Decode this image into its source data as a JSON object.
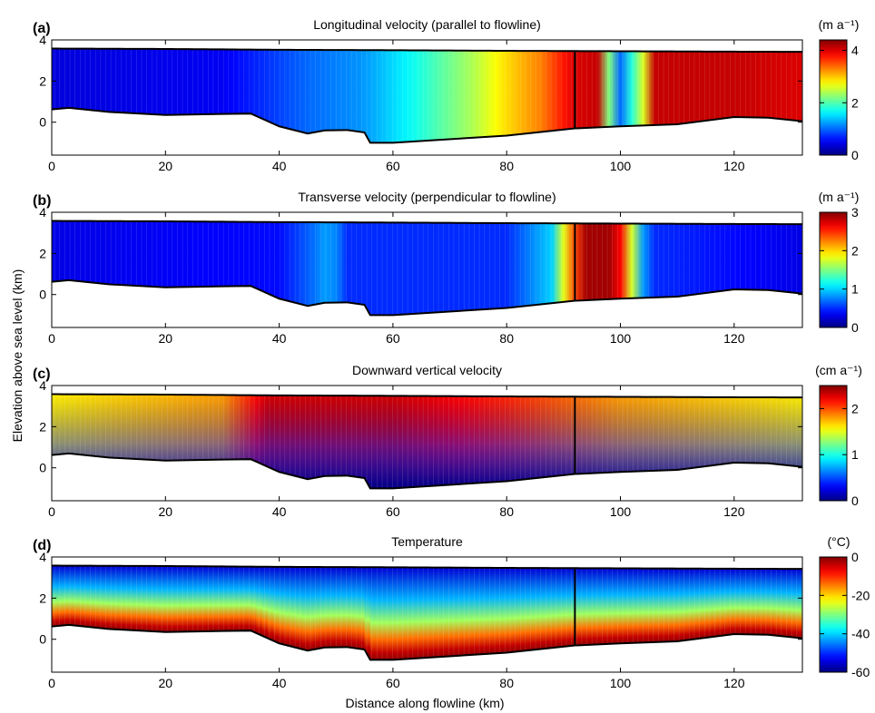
{
  "figure": {
    "ylabel": "Elevation above sea level (km)",
    "xlabel": "Distance along flowline (km)"
  },
  "chart_data": [
    {
      "type": "heatmap",
      "panel_label": "(a)",
      "title": "Longitudinal velocity (parallel to flowline)",
      "colorbar_label": "(m a⁻¹)",
      "colorbar_range": [
        0,
        4.4
      ],
      "colorbar_ticks": [
        0,
        2,
        4
      ],
      "xlim": [
        0,
        132
      ],
      "ylim": [
        -1.6,
        4
      ],
      "xticks": [
        0,
        20,
        40,
        60,
        80,
        100,
        120
      ],
      "yticks": [
        0,
        2,
        4
      ],
      "profile": [
        [
          0,
          0.4
        ],
        [
          30,
          0.5
        ],
        [
          45,
          1.0
        ],
        [
          55,
          1.2
        ],
        [
          62,
          1.6
        ],
        [
          68,
          2.0
        ],
        [
          74,
          2.4
        ],
        [
          80,
          2.9
        ],
        [
          86,
          3.3
        ],
        [
          92,
          4.0
        ],
        [
          96,
          4.1
        ],
        [
          98,
          2.2
        ],
        [
          100,
          1.0
        ],
        [
          104,
          2.6
        ],
        [
          106,
          4.1
        ],
        [
          120,
          4.1
        ],
        [
          132,
          4.0
        ]
      ],
      "vertical_gradient": "uniform",
      "colormap": "jet"
    },
    {
      "type": "heatmap",
      "panel_label": "(b)",
      "title": "Transverse velocity (perpendicular to flowline)",
      "colorbar_label": "(m a⁻¹)",
      "colorbar_range": [
        0,
        3
      ],
      "colorbar_ticks": [
        0,
        1,
        2,
        3
      ],
      "xlim": [
        0,
        132
      ],
      "ylim": [
        -1.6,
        4
      ],
      "xticks": [
        0,
        20,
        40,
        60,
        80,
        100,
        120
      ],
      "yticks": [
        0,
        2,
        4
      ],
      "profile": [
        [
          0,
          0.3
        ],
        [
          40,
          0.4
        ],
        [
          46,
          0.7
        ],
        [
          49,
          0.9
        ],
        [
          52,
          0.5
        ],
        [
          80,
          0.5
        ],
        [
          88,
          1.0
        ],
        [
          91,
          2.2
        ],
        [
          94,
          2.9
        ],
        [
          98,
          2.9
        ],
        [
          101,
          2.5
        ],
        [
          103,
          1.0
        ],
        [
          106,
          0.5
        ],
        [
          132,
          0.3
        ]
      ],
      "vertical_gradient": "uniform",
      "colormap": "jet"
    },
    {
      "type": "heatmap",
      "panel_label": "(c)",
      "title": "Downward vertical velocity",
      "colorbar_label": "(cm a⁻¹)",
      "colorbar_range": [
        0,
        2.5
      ],
      "colorbar_ticks": [
        0,
        1,
        2
      ],
      "xlim": [
        0,
        132
      ],
      "ylim": [
        -1.6,
        4
      ],
      "xticks": [
        0,
        20,
        40,
        60,
        80,
        100,
        120
      ],
      "yticks": [
        0,
        2,
        4
      ],
      "profile": [
        [
          0,
          1.6
        ],
        [
          30,
          1.8
        ],
        [
          38,
          2.3
        ],
        [
          60,
          2.3
        ],
        [
          80,
          2.1
        ],
        [
          100,
          1.8
        ],
        [
          132,
          1.6
        ]
      ],
      "vertical_gradient": "max at surface, zero at bed",
      "colormap": "jet"
    },
    {
      "type": "heatmap",
      "panel_label": "(d)",
      "title": "Temperature",
      "colorbar_label": "(°C)",
      "colorbar_range": [
        -60,
        0
      ],
      "colorbar_ticks": [
        0,
        -20,
        -40,
        -60
      ],
      "xlim": [
        0,
        132
      ],
      "ylim": [
        -1.6,
        4
      ],
      "xticks": [
        0,
        20,
        40,
        60,
        80,
        100,
        120
      ],
      "yticks": [
        0,
        2,
        4
      ],
      "vertical_gradient": "coldest (-55) at surface, near 0 at bed",
      "colormap": "jet"
    }
  ],
  "geometry": {
    "surface": [
      [
        0,
        3.58
      ],
      [
        20,
        3.56
      ],
      [
        40,
        3.52
      ],
      [
        60,
        3.5
      ],
      [
        80,
        3.47
      ],
      [
        100,
        3.45
      ],
      [
        120,
        3.43
      ],
      [
        132,
        3.42
      ]
    ],
    "bed": [
      [
        0,
        0.62
      ],
      [
        3,
        0.7
      ],
      [
        10,
        0.5
      ],
      [
        20,
        0.35
      ],
      [
        30,
        0.4
      ],
      [
        35,
        0.42
      ],
      [
        40,
        -0.2
      ],
      [
        45,
        -0.55
      ],
      [
        48,
        -0.4
      ],
      [
        52,
        -0.38
      ],
      [
        55,
        -0.5
      ],
      [
        56,
        -1.0
      ],
      [
        60,
        -1.0
      ],
      [
        80,
        -0.65
      ],
      [
        92,
        -0.3
      ],
      [
        100,
        -0.2
      ],
      [
        110,
        -0.1
      ],
      [
        120,
        0.25
      ],
      [
        126,
        0.22
      ],
      [
        132,
        0.05
      ]
    ],
    "vertical_line_x": 92
  }
}
